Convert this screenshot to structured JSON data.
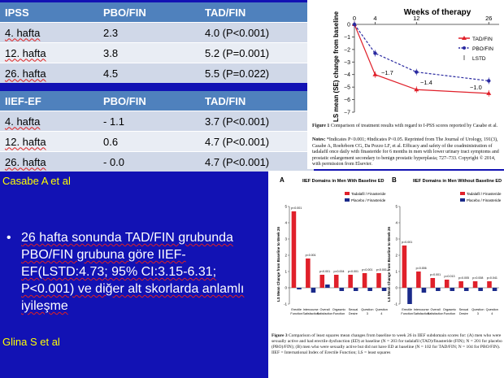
{
  "ipss_table": {
    "headers": [
      "IPSS",
      "PBO/FIN",
      "TAD/FIN"
    ],
    "rows": [
      [
        "4. hafta",
        "2.3",
        "4.0 (P<0.001)"
      ],
      [
        "12. hafta",
        "3.8",
        "5.2 (P=0.001)"
      ],
      [
        "26. hafta",
        "4.5",
        "5.5 (P=0.022)"
      ]
    ]
  },
  "iief_table": {
    "headers": [
      "IIEF-EF",
      "PBO/FIN",
      "TAD/FIN"
    ],
    "rows": [
      [
        "4. hafta",
        "- 1.1",
        "3.7 (P<0.001)"
      ],
      [
        "12. hafta",
        "0.6",
        "4.7 (P<0.001)"
      ],
      [
        "26. hafta",
        "- 0.0",
        "4.7 (P<0.001)"
      ]
    ]
  },
  "references": {
    "ref1": "Casabe A et al",
    "ref2": "Glina S et al"
  },
  "bullet": {
    "symbol": "•",
    "text": "26 hafta sonunda TAD/FIN grubunda PBO/FIN grubuna göre IIEF-EF(LSTD:4.73; 95% CI:3.15-6.31; P<0.001) ve diğer alt skorlarda anlamlı iyileşme"
  },
  "figure1": {
    "title": "Weeks of therapy",
    "ylabel": "LS mean (SE) change from baseline",
    "x_ticks": [
      "0",
      "4",
      "12",
      "26"
    ],
    "y_ticks": [
      "0",
      "−1",
      "−2",
      "−3",
      "−4",
      "−5",
      "−6",
      "−7"
    ],
    "legend": [
      "TAD/FIN",
      "PBO/FIN",
      "LSTD"
    ],
    "annotations": [
      "−1.7",
      "−1.4",
      "−1.0"
    ],
    "caption_title": "Figure 1",
    "caption": "Comparison of treatment results with regard to I-PSS scores reported by Casabe et al.",
    "notes_label": "Notes:",
    "notes": "*Indicates P<0.001; #Indicates P<0.05. Reprinted from The Journal of Urology, 191(3), Casabe A, Roehrborn CG, Da Pozzo LF, et al. Efficacy and safety of the coadministration of tadalafil once daily with finasteride for 6 months in men with lower urinary tract symptoms and prostatic enlargement secondary to benign prostatic hyperplasia; 727–733. Copyright © 2014, with permission from Elsevier."
  },
  "figure2": {
    "panel_a_label": "A",
    "panel_a_title": "IIEF Domains in Men With Baseline ED",
    "panel_b_label": "B",
    "panel_b_title": "IIEF Domains in Men Without Baseline ED",
    "legend": [
      "Tadalafil / Finasteride",
      "Placebo / Finasteride"
    ],
    "ylabel": "LS Mean Change from Baseline to Week 26",
    "categories_a": [
      "Erectile Function",
      "Intercourse Satisfaction",
      "Overall Satisfaction",
      "Orgasmic Function",
      "Sexual Desire",
      "Question 3",
      "Question 4"
    ],
    "categories_b": [
      "Erectile Function",
      "Intercourse Satisfaction",
      "Overall Satisfaction",
      "Orgasmic Function",
      "Sexual Desire",
      "Question 3",
      "Question 4"
    ],
    "pvalues_a": [
      "p<0.001",
      "p<0.001",
      "p<0.001",
      "p=0.004",
      "p<0.001",
      "p<0.001",
      "p<0.001"
    ],
    "pvalues_b": [
      "p=0.001",
      "p=0.006",
      "p=0.001",
      "p=0.013",
      "p=0.005",
      "p=0.008",
      "p=0.041"
    ],
    "caption_title": "Figure 3",
    "caption": "Comparison of least squares mean changes from baseline to week 26 in IIEF subdomain scores for: (A) men who were sexually active and had erectile dysfunction (ED) at baseline (N = 203 for tadalafil (TAD)/finasteride (FIN); N = 201 for placebo (PBO)/FIN); (B) men who were sexually active but did not have ED at baseline (N = 102 for TAD/FIN; N = 104 for PBO/FIN). IIEF = International Index of Erectile Function; LS = least squares"
  },
  "chart_data": [
    {
      "type": "line",
      "title": "Weeks of therapy",
      "xlabel": "",
      "ylabel": "LS mean (SE) change from baseline",
      "x": [
        0,
        4,
        12,
        26
      ],
      "ylim": [
        -7,
        0
      ],
      "series": [
        {
          "name": "TAD/FIN",
          "values": [
            0,
            -4.0,
            -5.2,
            -5.5
          ],
          "color": "#e0202a"
        },
        {
          "name": "PBO/FIN",
          "values": [
            0,
            -2.3,
            -3.8,
            -4.5
          ],
          "color": "#2a2aa0"
        }
      ]
    },
    {
      "type": "bar",
      "title": "IIEF Domains in Men With Baseline ED",
      "xlabel": "",
      "ylabel": "LS Mean Change from Baseline to Week 26",
      "categories": [
        "Erectile Function",
        "Intercourse Satisfaction",
        "Overall Satisfaction",
        "Orgasmic Function",
        "Sexual Desire",
        "Question 3",
        "Question 4"
      ],
      "ylim": [
        -1,
        5
      ],
      "series": [
        {
          "name": "Tadalafil / Finasteride",
          "values": [
            4.7,
            1.8,
            0.8,
            0.8,
            0.8,
            0.9,
            0.9
          ],
          "color": "#e0202a"
        },
        {
          "name": "Placebo / Finasteride",
          "values": [
            -0.1,
            -0.3,
            0.2,
            -0.2,
            -0.2,
            -0.2,
            -0.2
          ],
          "color": "#1a2a8a"
        }
      ]
    },
    {
      "type": "bar",
      "title": "IIEF Domains in Men Without Baseline ED",
      "xlabel": "",
      "ylabel": "LS Mean Change from Baseline to Week 26",
      "categories": [
        "Erectile Function",
        "Intercourse Satisfaction",
        "Overall Satisfaction",
        "Orgasmic Function",
        "Sexual Desire",
        "Question 3",
        "Question 4"
      ],
      "ylim": [
        -1,
        5
      ],
      "series": [
        {
          "name": "Tadalafil / Finasteride",
          "values": [
            2.6,
            1.0,
            0.6,
            0.5,
            0.4,
            0.4,
            0.4
          ],
          "color": "#e0202a"
        },
        {
          "name": "Placebo / Finasteride",
          "values": [
            -1.0,
            -0.3,
            -0.2,
            -0.2,
            -0.2,
            -0.2,
            -0.2
          ],
          "color": "#1a2a8a"
        }
      ]
    }
  ]
}
